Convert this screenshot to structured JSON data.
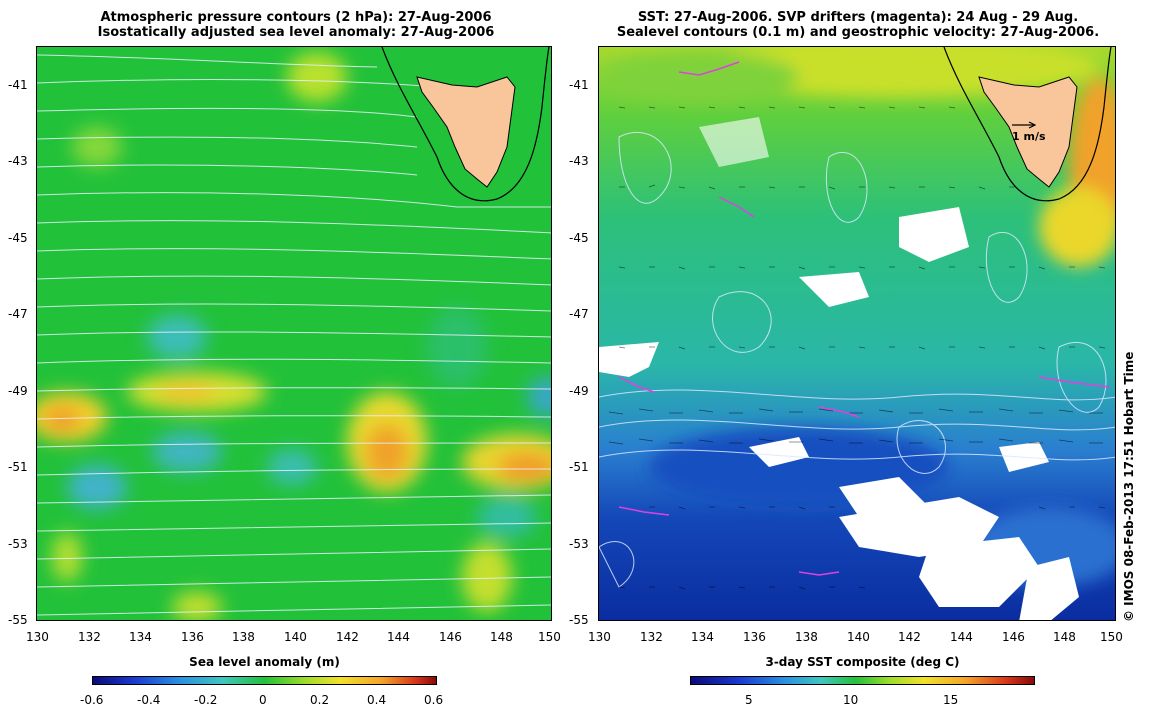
{
  "left_panel": {
    "title_line1": "Atmospheric pressure contours (2 hPa): 27-Aug-2006",
    "title_line2": "Isostatically adjusted sea level anomaly: 27-Aug-2006",
    "colorbar_label": "Sea level anomaly (m)",
    "colorbar_ticks": [
      "-0.6",
      "-0.4",
      "-0.2",
      "0",
      "0.2",
      "0.4",
      "0.6"
    ]
  },
  "right_panel": {
    "title_line1": "SST: 27-Aug-2006. SVP drifters (magenta): 24 Aug - 29 Aug.",
    "title_line2": "Sealevel contours (0.1 m) and geostrophic velocity: 27-Aug-2006.",
    "colorbar_label": "3-day SST composite (deg C)",
    "colorbar_ticks": [
      "5",
      "10",
      "15"
    ],
    "velocity_scale_label": "1 m/s"
  },
  "axes": {
    "lon_ticks": [
      "130",
      "132",
      "134",
      "136",
      "138",
      "140",
      "142",
      "144",
      "146",
      "148",
      "150"
    ],
    "lat_ticks": [
      "-41",
      "-43",
      "-45",
      "-47",
      "-49",
      "-51",
      "-53",
      "-55"
    ]
  },
  "credit": "© IMOS 08-Feb-2013 17:51 Hobart Time",
  "colors": {
    "land": "#f9c69b",
    "ocean_mid": "#22c13a",
    "anomaly_high": "#f5d33a",
    "anomaly_low": "#3fb7c8",
    "sst_cold": "#0a3fb0",
    "sst_warm": "#f5e21a",
    "drifter": "#e040e0"
  }
}
